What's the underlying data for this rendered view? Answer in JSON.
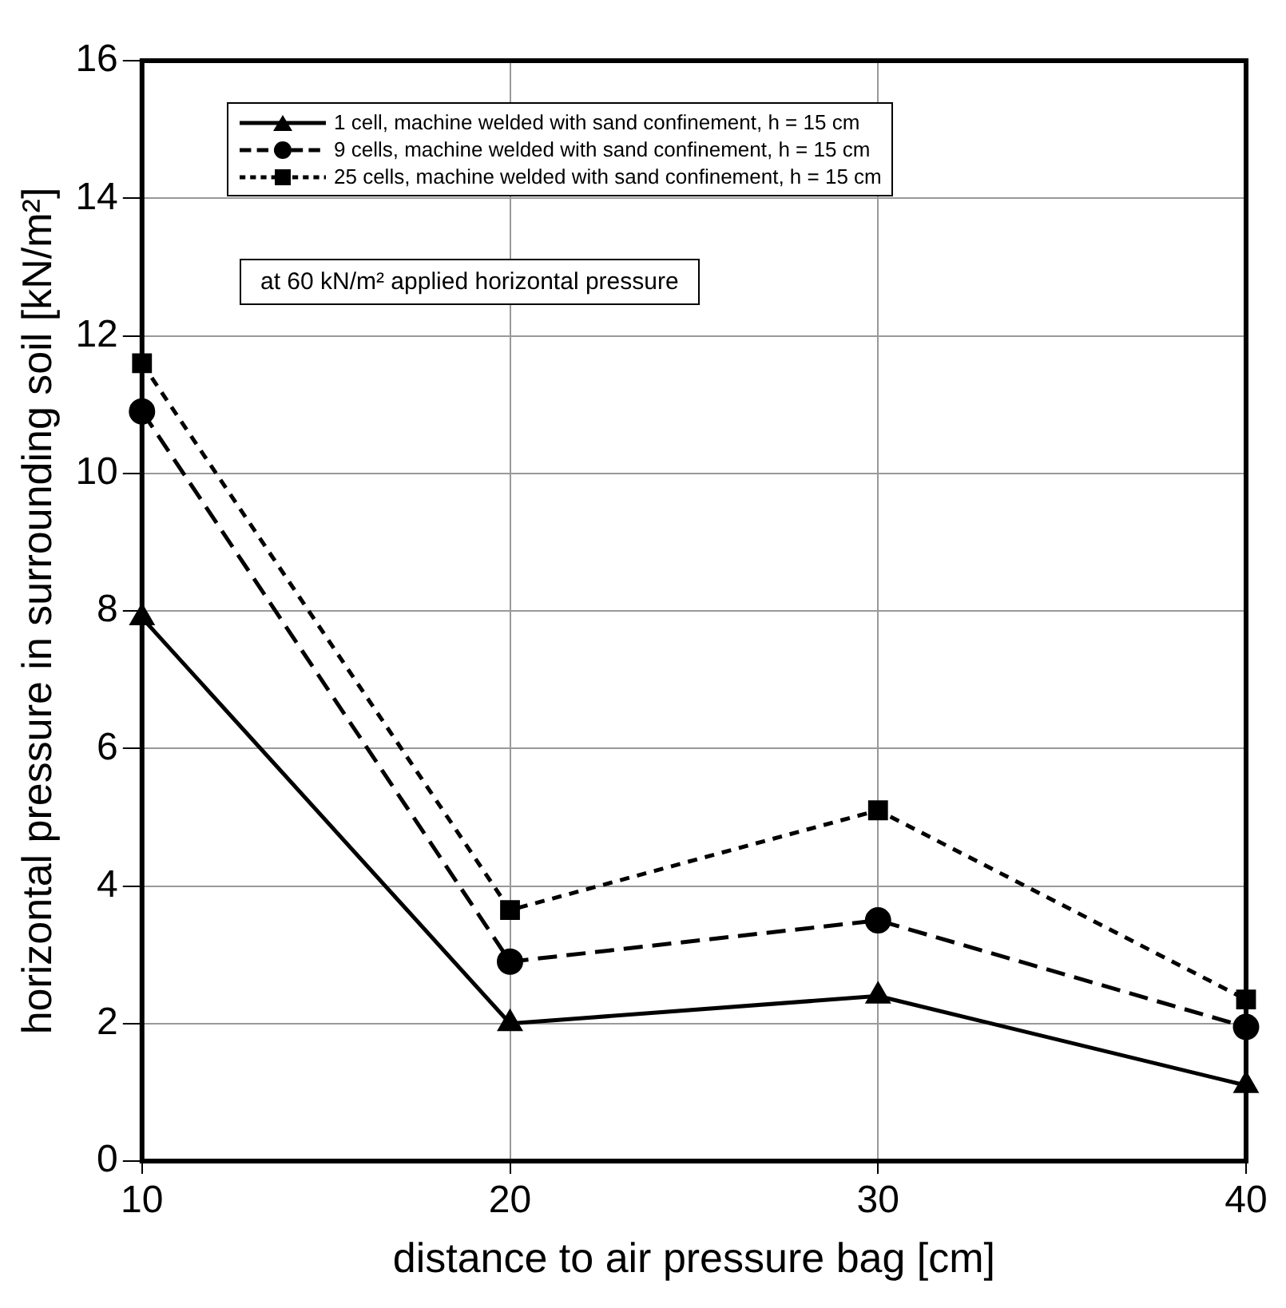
{
  "chart_data": {
    "type": "line",
    "xlabel": "distance to air pressure bag [cm]",
    "ylabel": "horizontal pressure in surrounding soil [kN/m²]",
    "x": [
      10,
      20,
      30,
      40
    ],
    "series": [
      {
        "name": "1 cell, machine welded with sand confinement, h = 15 cm",
        "color": "#000000",
        "marker": "triangle",
        "line_style": "solid",
        "values": [
          7.9,
          2.0,
          2.4,
          1.1
        ]
      },
      {
        "name": "9 cells, machine welded with sand confinement, h = 15 cm",
        "color": "#000000",
        "marker": "circle",
        "line_style": "dashed",
        "values": [
          10.9,
          2.9,
          3.5,
          1.95
        ]
      },
      {
        "name": "25 cells, machine welded with sand confinement, h = 15 cm",
        "color": "#000000",
        "marker": "square",
        "line_style": "dotted",
        "values": [
          11.6,
          3.65,
          5.1,
          2.35
        ]
      }
    ],
    "annotations": [
      "at 60 kN/m² applied horizontal pressure"
    ],
    "xlim": [
      10,
      40
    ],
    "xticks": [
      10,
      20,
      30,
      40
    ],
    "ylim": [
      0,
      16
    ],
    "yticks": [
      0,
      2,
      4,
      6,
      8,
      10,
      12,
      14,
      16
    ],
    "grid": true,
    "legend": "top"
  }
}
